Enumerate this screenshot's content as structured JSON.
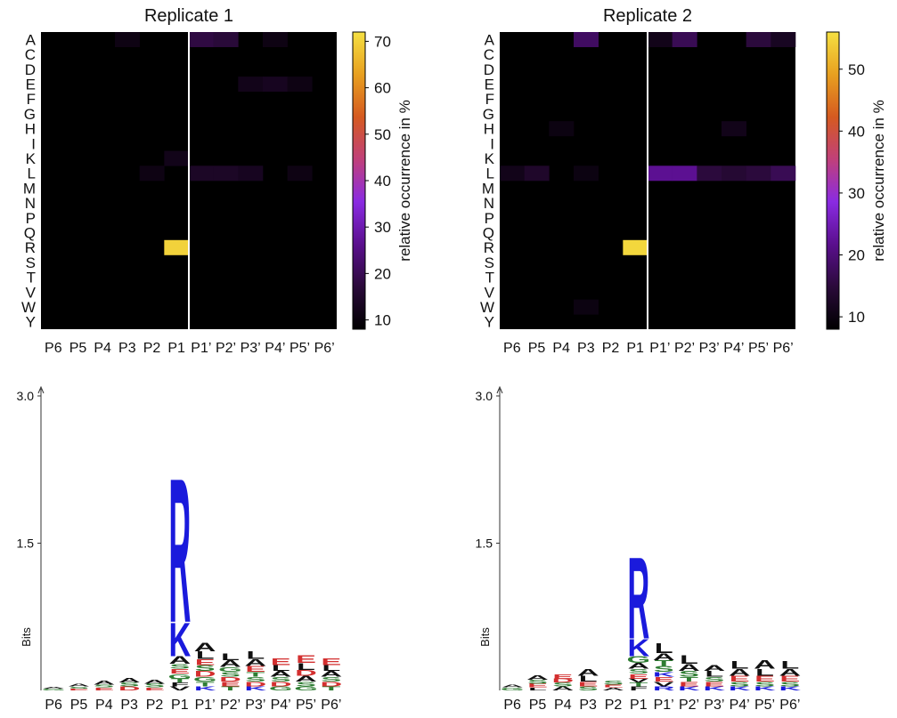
{
  "colors": {
    "colormap": [
      "#000000",
      "#2a0a3a",
      "#5a0f8e",
      "#8a2be2",
      "#c0407a",
      "#d55a20",
      "#e8a020",
      "#f5e042"
    ],
    "residue_blue": "#1a1adc",
    "residue_green": "#2e7d32",
    "residue_red": "#d32f2f",
    "residue_black": "#111111",
    "divider": "#ffffff"
  },
  "chart_data": [
    {
      "type": "heatmap",
      "title": "Replicate 1",
      "x_labels": [
        "P6",
        "P5",
        "P4",
        "P3",
        "P2",
        "P1",
        "P1’",
        "P2’",
        "P3’",
        "P4’",
        "P5’",
        "P6’"
      ],
      "y_labels": [
        "A",
        "C",
        "D",
        "E",
        "F",
        "G",
        "H",
        "I",
        "K",
        "L",
        "M",
        "N",
        "P",
        "Q",
        "R",
        "S",
        "T",
        "V",
        "W",
        "Y"
      ],
      "colorbar": {
        "label": "relative occurrence in %",
        "min": 8,
        "max": 72,
        "ticks": [
          10,
          20,
          30,
          40,
          50,
          60,
          70
        ]
      },
      "cells": [
        [
          "A",
          "P3",
          11
        ],
        [
          "A",
          "P1’",
          18
        ],
        [
          "A",
          "P2’",
          17
        ],
        [
          "A",
          "P4’",
          11
        ],
        [
          "E",
          "P3’",
          12
        ],
        [
          "E",
          "P4’",
          13
        ],
        [
          "E",
          "P5’",
          11
        ],
        [
          "K",
          "P1",
          12
        ],
        [
          "L",
          "P2",
          11
        ],
        [
          "L",
          "P1’",
          14
        ],
        [
          "L",
          "P2’",
          14
        ],
        [
          "L",
          "P3’",
          13
        ],
        [
          "L",
          "P5’",
          11
        ],
        [
          "R",
          "P1",
          70
        ]
      ]
    },
    {
      "type": "heatmap",
      "title": "Replicate 2",
      "x_labels": [
        "P6",
        "P5",
        "P4",
        "P3",
        "P2",
        "P1",
        "P1’",
        "P2’",
        "P3’",
        "P4’",
        "P5’",
        "P6’"
      ],
      "y_labels": [
        "A",
        "C",
        "D",
        "E",
        "F",
        "G",
        "H",
        "I",
        "K",
        "L",
        "M",
        "N",
        "P",
        "Q",
        "R",
        "S",
        "T",
        "V",
        "W",
        "Y"
      ],
      "colorbar": {
        "label": "relative occurrence in %",
        "min": 8,
        "max": 56,
        "ticks": [
          10,
          20,
          30,
          40,
          50
        ]
      },
      "cells": [
        [
          "A",
          "P3",
          18
        ],
        [
          "A",
          "P1’",
          11
        ],
        [
          "A",
          "P2’",
          17
        ],
        [
          "A",
          "P5’",
          15
        ],
        [
          "A",
          "P6’",
          12
        ],
        [
          "H",
          "P4",
          10
        ],
        [
          "H",
          "P4’",
          11
        ],
        [
          "L",
          "P6",
          11
        ],
        [
          "L",
          "P5",
          13
        ],
        [
          "L",
          "P3",
          10
        ],
        [
          "L",
          "P1’",
          22
        ],
        [
          "L",
          "P2’",
          22
        ],
        [
          "L",
          "P3’",
          15
        ],
        [
          "L",
          "P4’",
          14
        ],
        [
          "L",
          "P5’",
          15
        ],
        [
          "L",
          "P6’",
          17
        ],
        [
          "R",
          "P1",
          55
        ],
        [
          "W",
          "P3",
          10
        ]
      ]
    },
    {
      "type": "sequence_logo",
      "ylabel": "Bits",
      "ylim": [
        0,
        3.0
      ],
      "yticks": [
        1.5,
        3.0
      ],
      "x_labels": [
        "P6",
        "P5",
        "P4",
        "P3",
        "P2",
        "P1",
        "P1’",
        "P2’",
        "P3’",
        "P4’",
        "P5’",
        "P6’"
      ],
      "positions": [
        {
          "pos": "P6",
          "letters": [
            [
              "G",
              0.02
            ],
            [
              "A",
              0.02
            ]
          ]
        },
        {
          "pos": "P5",
          "letters": [
            [
              "A",
              0.03
            ],
            [
              "E",
              0.02
            ],
            [
              "S",
              0.02
            ]
          ]
        },
        {
          "pos": "P4",
          "letters": [
            [
              "A",
              0.04
            ],
            [
              "E",
              0.03
            ],
            [
              "S",
              0.03
            ]
          ]
        },
        {
          "pos": "P3",
          "letters": [
            [
              "A",
              0.05
            ],
            [
              "D",
              0.04
            ],
            [
              "S",
              0.04
            ]
          ]
        },
        {
          "pos": "P2",
          "letters": [
            [
              "S",
              0.04
            ],
            [
              "A",
              0.04
            ],
            [
              "E",
              0.03
            ]
          ]
        },
        {
          "pos": "P1",
          "letters": [
            [
              "R",
              1.5
            ],
            [
              "K",
              0.35
            ],
            [
              "A",
              0.08
            ],
            [
              "G",
              0.05
            ],
            [
              "E",
              0.05
            ],
            [
              "S",
              0.05
            ],
            [
              "V",
              0.04
            ],
            [
              "F",
              0.04
            ],
            [
              "T",
              0.04
            ]
          ]
        },
        {
          "pos": "P1’",
          "letters": [
            [
              "A",
              0.09
            ],
            [
              "L",
              0.08
            ],
            [
              "D",
              0.06
            ],
            [
              "S",
              0.06
            ],
            [
              "E",
              0.06
            ],
            [
              "T",
              0.05
            ],
            [
              "G",
              0.05
            ],
            [
              "K",
              0.04
            ]
          ]
        },
        {
          "pos": "P2’",
          "letters": [
            [
              "A",
              0.07
            ],
            [
              "L",
              0.07
            ],
            [
              "E",
              0.05
            ],
            [
              "D",
              0.05
            ],
            [
              "S",
              0.05
            ],
            [
              "G",
              0.05
            ],
            [
              "T",
              0.04
            ]
          ]
        },
        {
          "pos": "P3’",
          "letters": [
            [
              "L",
              0.08
            ],
            [
              "A",
              0.07
            ],
            [
              "E",
              0.06
            ],
            [
              "D",
              0.05
            ],
            [
              "S",
              0.05
            ],
            [
              "T",
              0.05
            ],
            [
              "K",
              0.04
            ]
          ]
        },
        {
          "pos": "P4’",
          "letters": [
            [
              "E",
              0.07
            ],
            [
              "A",
              0.06
            ],
            [
              "L",
              0.06
            ],
            [
              "D",
              0.05
            ],
            [
              "S",
              0.05
            ],
            [
              "G",
              0.04
            ]
          ]
        },
        {
          "pos": "P5’",
          "letters": [
            [
              "E",
              0.08
            ],
            [
              "L",
              0.07
            ],
            [
              "A",
              0.06
            ],
            [
              "D",
              0.06
            ],
            [
              "S",
              0.05
            ],
            [
              "G",
              0.04
            ]
          ]
        },
        {
          "pos": "P6’",
          "letters": [
            [
              "E",
              0.07
            ],
            [
              "A",
              0.06
            ],
            [
              "L",
              0.06
            ],
            [
              "D",
              0.05
            ],
            [
              "S",
              0.05
            ],
            [
              "T",
              0.04
            ]
          ]
        }
      ]
    },
    {
      "type": "sequence_logo",
      "ylabel": "Bits",
      "ylim": [
        0,
        3.0
      ],
      "yticks": [
        1.5,
        3.0
      ],
      "x_labels": [
        "P6",
        "P5",
        "P4",
        "P3",
        "P2",
        "P1",
        "P1’",
        "P2’",
        "P3’",
        "P4’",
        "P5’",
        "P6’"
      ],
      "positions": [
        {
          "pos": "P6",
          "letters": [
            [
              "G",
              0.03
            ],
            [
              "A",
              0.03
            ]
          ]
        },
        {
          "pos": "P5",
          "letters": [
            [
              "A",
              0.05
            ],
            [
              "E",
              0.04
            ],
            [
              "S",
              0.04
            ],
            [
              "L",
              0.03
            ]
          ]
        },
        {
          "pos": "P4",
          "letters": [
            [
              "E",
              0.05
            ],
            [
              "A",
              0.04
            ],
            [
              "S",
              0.04
            ],
            [
              "D",
              0.04
            ]
          ]
        },
        {
          "pos": "P3",
          "letters": [
            [
              "A",
              0.07
            ],
            [
              "L",
              0.06
            ],
            [
              "E",
              0.05
            ],
            [
              "S",
              0.04
            ]
          ]
        },
        {
          "pos": "P2",
          "letters": [
            [
              "S",
              0.04
            ],
            [
              "A",
              0.03
            ],
            [
              "E",
              0.03
            ]
          ]
        },
        {
          "pos": "P1",
          "letters": [
            [
              "R",
              0.85
            ],
            [
              "K",
              0.18
            ],
            [
              "G",
              0.07
            ],
            [
              "A",
              0.06
            ],
            [
              "E",
              0.05
            ],
            [
              "S",
              0.05
            ],
            [
              "F",
              0.04
            ],
            [
              "T",
              0.04
            ],
            [
              "V",
              0.04
            ]
          ]
        },
        {
          "pos": "P1’",
          "letters": [
            [
              "L",
              0.1
            ],
            [
              "A",
              0.07
            ],
            [
              "S",
              0.06
            ],
            [
              "T",
              0.06
            ],
            [
              "V",
              0.05
            ],
            [
              "E",
              0.05
            ],
            [
              "K",
              0.05
            ],
            [
              "R",
              0.04
            ]
          ]
        },
        {
          "pos": "P2’",
          "letters": [
            [
              "L",
              0.09
            ],
            [
              "A",
              0.07
            ],
            [
              "S",
              0.06
            ],
            [
              "E",
              0.05
            ],
            [
              "T",
              0.05
            ],
            [
              "K",
              0.04
            ]
          ]
        },
        {
          "pos": "P3’",
          "letters": [
            [
              "L",
              0.06
            ],
            [
              "A",
              0.06
            ],
            [
              "E",
              0.05
            ],
            [
              "S",
              0.05
            ],
            [
              "K",
              0.04
            ]
          ]
        },
        {
          "pos": "P4’",
          "letters": [
            [
              "L",
              0.08
            ],
            [
              "A",
              0.07
            ],
            [
              "E",
              0.06
            ],
            [
              "S",
              0.05
            ],
            [
              "K",
              0.04
            ]
          ]
        },
        {
          "pos": "P5’",
          "letters": [
            [
              "A",
              0.09
            ],
            [
              "L",
              0.07
            ],
            [
              "E",
              0.06
            ],
            [
              "S",
              0.05
            ],
            [
              "K",
              0.04
            ]
          ]
        },
        {
          "pos": "P6’",
          "letters": [
            [
              "L",
              0.08
            ],
            [
              "A",
              0.07
            ],
            [
              "E",
              0.06
            ],
            [
              "S",
              0.05
            ],
            [
              "K",
              0.04
            ]
          ]
        }
      ]
    }
  ]
}
